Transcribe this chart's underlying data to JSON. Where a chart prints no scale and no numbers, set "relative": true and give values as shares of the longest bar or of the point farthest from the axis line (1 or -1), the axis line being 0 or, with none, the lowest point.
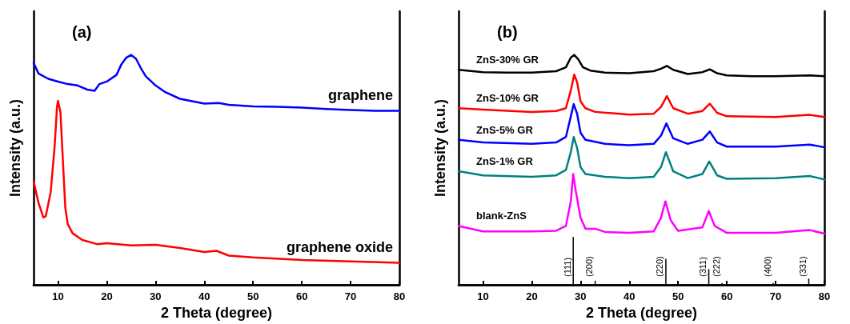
{
  "chart_data": [
    {
      "type": "line",
      "relative": true,
      "xlabel": "2 Theta (degree)",
      "ylabel": "Intensity (a.u.)",
      "xlim": [
        5,
        80
      ],
      "xticks": [
        10,
        20,
        30,
        40,
        50,
        60,
        70,
        80
      ],
      "grid": false,
      "legend": false,
      "marker": "none",
      "line_style": "solid",
      "annotations": [
        "(a)"
      ],
      "series": [
        {
          "name": "graphene",
          "color": "#0000ff",
          "x": [
            5,
            6,
            8,
            10,
            12,
            14,
            16,
            17.5,
            18.5,
            20,
            22,
            23,
            24,
            25,
            26,
            27,
            28,
            30,
            32,
            35,
            40,
            43,
            45,
            50,
            55,
            60,
            65,
            70,
            75,
            80
          ],
          "values": [
            0.965,
            0.919,
            0.896,
            0.884,
            0.873,
            0.867,
            0.849,
            0.844,
            0.873,
            0.884,
            0.913,
            0.959,
            0.988,
            1,
            0.983,
            0.942,
            0.907,
            0.867,
            0.838,
            0.809,
            0.788,
            0.791,
            0.783,
            0.776,
            0.774,
            0.771,
            0.765,
            0.76,
            0.757,
            0.757
          ]
        },
        {
          "name": "graphene oxide",
          "color": "#ff0000",
          "x": [
            5,
            6,
            7,
            7.5,
            8.5,
            9.3,
            9.8,
            10,
            10.5,
            11,
            11.5,
            12,
            13,
            15,
            18,
            20,
            25,
            30,
            35,
            40,
            42.5,
            45,
            50,
            60,
            70,
            80
          ],
          "values": [
            0.45,
            0.357,
            0.293,
            0.299,
            0.403,
            0.6,
            0.774,
            0.8,
            0.751,
            0.542,
            0.334,
            0.264,
            0.224,
            0.195,
            0.177,
            0.181,
            0.171,
            0.174,
            0.16,
            0.143,
            0.148,
            0.127,
            0.119,
            0.108,
            0.102,
            0.096
          ]
        }
      ]
    },
    {
      "type": "line",
      "relative": true,
      "xlabel": "2 Theta (degree)",
      "ylabel": "Intensity (a.u.)",
      "xlim": [
        5,
        80
      ],
      "xticks": [
        10,
        20,
        30,
        40,
        50,
        60,
        70,
        80
      ],
      "grid": false,
      "legend": false,
      "marker": "none",
      "line_style": "solid",
      "annotations": [
        "(b)",
        "(111)",
        "(200)",
        "(220)",
        "(311)",
        "(222)",
        "(400)",
        "(331)"
      ],
      "series": [
        {
          "name": "ZnS-30% GR",
          "color": "#000000",
          "x": [
            5,
            10,
            15,
            20,
            25,
            27,
            28,
            28.7,
            29.5,
            30.5,
            32,
            35,
            40,
            45,
            46.5,
            47.7,
            49,
            52,
            55,
            56.5,
            58,
            60,
            65,
            70,
            77,
            80
          ],
          "values": [
            0.935,
            0.925,
            0.923,
            0.923,
            0.929,
            0.946,
            0.988,
            1,
            0.982,
            0.946,
            0.932,
            0.923,
            0.92,
            0.929,
            0.94,
            0.952,
            0.935,
            0.917,
            0.925,
            0.937,
            0.92,
            0.911,
            0.907,
            0.907,
            0.911,
            0.907
          ]
        },
        {
          "name": "ZnS-10% GR",
          "color": "#ff0000",
          "x": [
            5,
            10,
            20,
            25,
            27,
            28,
            28.7,
            29.3,
            30,
            31,
            33,
            40,
            45,
            46.5,
            47.7,
            49,
            52,
            55,
            56.5,
            58,
            60,
            70,
            77,
            80
          ],
          "values": [
            0.768,
            0.762,
            0.752,
            0.756,
            0.768,
            0.845,
            0.914,
            0.881,
            0.798,
            0.768,
            0.752,
            0.74,
            0.744,
            0.774,
            0.821,
            0.768,
            0.744,
            0.756,
            0.788,
            0.748,
            0.733,
            0.73,
            0.739,
            0.73
          ]
        },
        {
          "name": "ZnS-5% GR",
          "color": "#0000ff",
          "x": [
            5,
            10,
            20,
            25,
            27,
            28,
            28.6,
            29.3,
            30,
            31,
            35,
            40,
            45,
            46.5,
            47.6,
            49,
            52,
            55,
            56.5,
            58,
            60,
            70,
            77,
            80
          ],
          "values": [
            0.631,
            0.619,
            0.613,
            0.619,
            0.643,
            0.732,
            0.786,
            0.744,
            0.661,
            0.631,
            0.613,
            0.607,
            0.613,
            0.649,
            0.702,
            0.637,
            0.613,
            0.631,
            0.667,
            0.619,
            0.601,
            0.601,
            0.61,
            0.598
          ]
        },
        {
          "name": "ZnS-1% GR",
          "color": "#008080",
          "x": [
            5,
            10,
            20,
            25,
            27,
            28,
            28.6,
            29.3,
            30,
            31,
            35,
            40,
            45,
            46.5,
            47.5,
            49,
            52,
            55,
            56.4,
            58,
            60,
            70,
            77,
            80
          ],
          "values": [
            0.494,
            0.476,
            0.47,
            0.476,
            0.5,
            0.577,
            0.643,
            0.595,
            0.512,
            0.482,
            0.47,
            0.464,
            0.47,
            0.512,
            0.577,
            0.494,
            0.464,
            0.482,
            0.536,
            0.476,
            0.461,
            0.464,
            0.473,
            0.458
          ]
        },
        {
          "name": "blank-ZnS",
          "color": "#ff00ff",
          "x": [
            5,
            10,
            20,
            25,
            27,
            28,
            28.5,
            29,
            30,
            31,
            33,
            35,
            40,
            45,
            46.5,
            47.4,
            48.5,
            50,
            55,
            56.3,
            57.5,
            60,
            70,
            77,
            80
          ],
          "values": [
            0.256,
            0.232,
            0.232,
            0.235,
            0.256,
            0.363,
            0.482,
            0.411,
            0.292,
            0.244,
            0.244,
            0.23,
            0.226,
            0.232,
            0.292,
            0.363,
            0.28,
            0.235,
            0.25,
            0.321,
            0.256,
            0.226,
            0.226,
            0.238,
            0.223
          ]
        },
        {
          "type": "bar",
          "color": "#000000",
          "x": [
            28.5,
            33,
            47.5,
            56.3,
            59,
            69.5,
            76.8
          ],
          "values": [
            0.208,
            0.018,
            0.113,
            0.068,
            0.008,
            0.008,
            0.027
          ]
        }
      ]
    }
  ]
}
